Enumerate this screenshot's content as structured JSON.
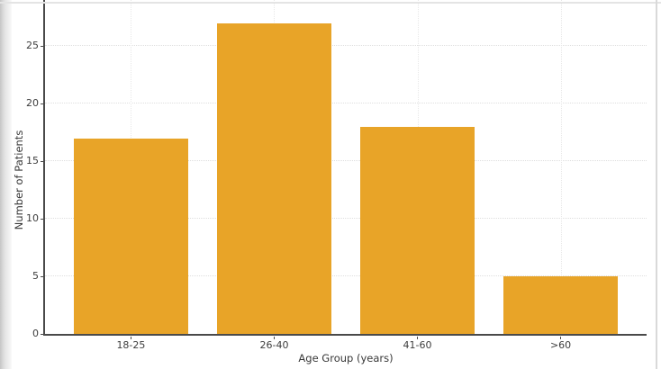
{
  "window": {
    "background": "#ffffff",
    "left_edge_gradient": [
      "#c6c6c6",
      "#f9f9f9"
    ],
    "top_edge_color": "#e4e4e4",
    "right_edge_color": "#d9d9d9"
  },
  "chart_data": {
    "type": "bar",
    "title": "",
    "categories": [
      "18-25",
      "26-40",
      "41-60",
      ">60"
    ],
    "values": [
      17,
      27,
      18,
      5
    ],
    "xlabel": "Age Group (years)",
    "ylabel": "Number of Patients",
    "yticks": [
      0,
      5,
      10,
      15,
      20,
      25
    ],
    "ylim": [
      0,
      29
    ],
    "xlim_pad": 0.6,
    "bar_width_frac": 0.8,
    "bar_color": "#E8A428",
    "grid": true,
    "grid_style": "dotted",
    "grid_color": "#e0e0e0",
    "axis_color": "#4a4a4a",
    "tick_label_color": "#3d3d3d",
    "legend": "none"
  }
}
